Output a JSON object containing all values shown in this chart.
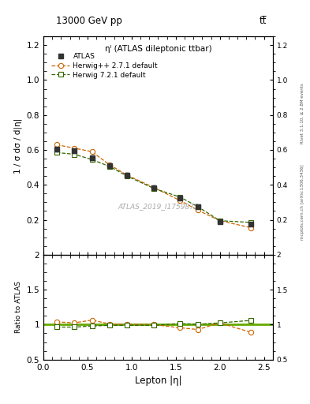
{
  "title_top": "13000 GeV pp",
  "title_right": "tt̅",
  "plot_title": "ηˡ (ATLAS dileptonic ttbar)",
  "watermark": "ATLAS_2019_I1759875",
  "right_label": "Rivet 3.1.10, ≥ 2.8M events",
  "right_label2": "mcplots.cern.ch [arXiv:1306.3436]",
  "xlabel": "Lepton |η|",
  "ylabel_main": "1 / σ dσ / d|η|",
  "ylabel_ratio": "Ratio to ATLAS",
  "atlas_x": [
    0.15,
    0.35,
    0.55,
    0.75,
    0.95,
    1.25,
    1.55,
    1.75,
    2.0,
    2.35
  ],
  "atlas_y": [
    0.605,
    0.595,
    0.555,
    0.51,
    0.455,
    0.385,
    0.325,
    0.275,
    0.19,
    0.175
  ],
  "atlas_yerr": [
    0.015,
    0.015,
    0.012,
    0.012,
    0.012,
    0.01,
    0.01,
    0.01,
    0.01,
    0.01
  ],
  "hwpp_x": [
    0.15,
    0.35,
    0.55,
    0.75,
    0.95,
    1.25,
    1.55,
    1.75,
    2.0,
    2.35
  ],
  "hwpp_y": [
    0.63,
    0.61,
    0.59,
    0.515,
    0.455,
    0.385,
    0.31,
    0.255,
    0.195,
    0.155
  ],
  "hw72_x": [
    0.15,
    0.35,
    0.55,
    0.75,
    0.95,
    1.25,
    1.55,
    1.75,
    2.0,
    2.35
  ],
  "hw72_y": [
    0.585,
    0.575,
    0.545,
    0.505,
    0.45,
    0.38,
    0.33,
    0.275,
    0.195,
    0.185
  ],
  "hwpp_ratio": [
    1.04,
    1.025,
    1.065,
    1.01,
    1.005,
    1.0,
    0.955,
    0.93,
    1.025,
    0.89
  ],
  "hw72_ratio": [
    0.965,
    0.965,
    0.98,
    0.99,
    0.99,
    0.99,
    1.015,
    1.005,
    1.025,
    1.06
  ],
  "main_ylim": [
    0.0,
    1.25
  ],
  "ratio_ylim": [
    0.5,
    2.0
  ],
  "xlim": [
    0.0,
    2.6
  ],
  "atlas_color": "#333333",
  "hwpp_color": "#cc6600",
  "hw72_color": "#336600",
  "ref_line_color": "#66aa00",
  "main_yticks": [
    0.2,
    0.4,
    0.6,
    0.8,
    1.0,
    1.2
  ],
  "ratio_yticks": [
    0.5,
    1.0,
    1.5,
    2.0
  ],
  "xticks": [
    0.0,
    0.5,
    1.0,
    1.5,
    2.0,
    2.5
  ]
}
